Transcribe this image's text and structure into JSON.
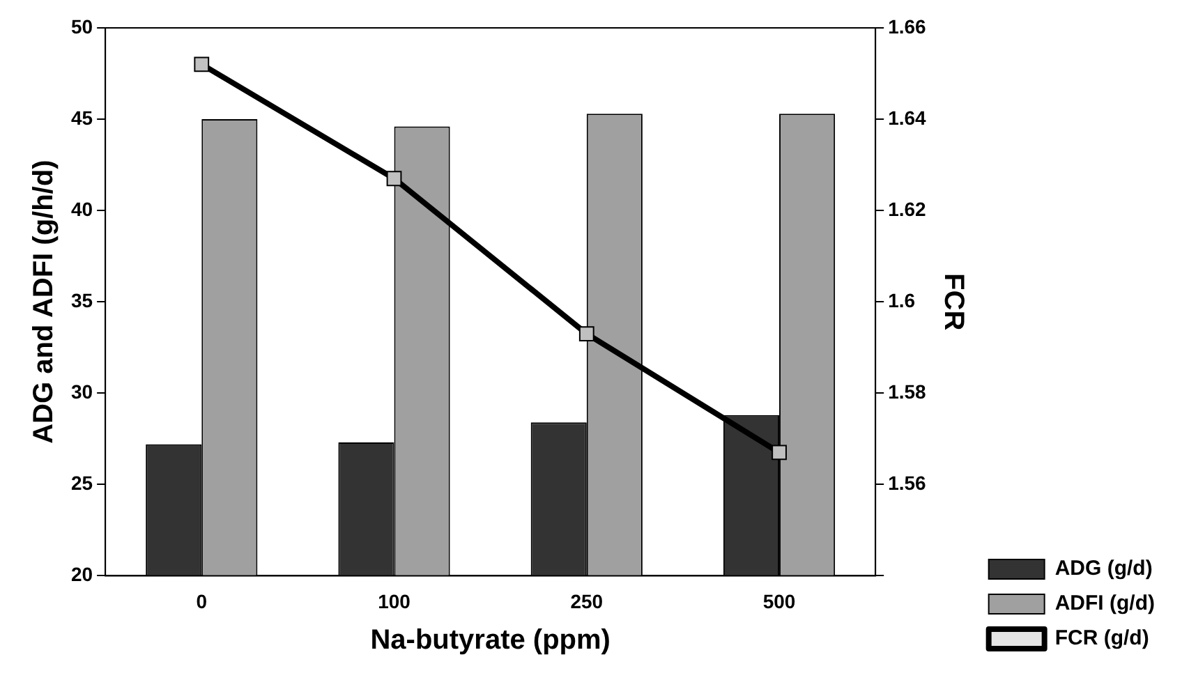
{
  "chart_data": {
    "type": "bar",
    "xlabel": "Na-butyrate (ppm)",
    "ylabel": "ADG and ADFI (g/h/d)",
    "y2label": "FCR",
    "categories": [
      "0",
      "100",
      "250",
      "500"
    ],
    "series": [
      {
        "name": "ADG (g/d)",
        "color": "#333333",
        "values": [
          27.2,
          27.3,
          28.4,
          28.8
        ]
      },
      {
        "name": "ADFI (g/d)",
        "color": "#a0a0a0",
        "values": [
          45.0,
          44.6,
          45.3,
          45.3
        ]
      },
      {
        "name": "FCR (g/d)",
        "type": "line",
        "axis": "y2",
        "color": "#000000",
        "marker": "square",
        "values": [
          1.652,
          1.627,
          1.593,
          1.567
        ]
      }
    ],
    "ylim": [
      20,
      50
    ],
    "yticks": [
      20,
      25,
      30,
      35,
      40,
      45,
      50
    ],
    "y2lim": [
      1.54,
      1.66
    ],
    "y2ticks": [
      {
        "value": 1.54,
        "label": null
      },
      1.56,
      1.58,
      1.6,
      1.62,
      1.64,
      1.66
    ],
    "grid": false,
    "legend": "bottom right"
  }
}
